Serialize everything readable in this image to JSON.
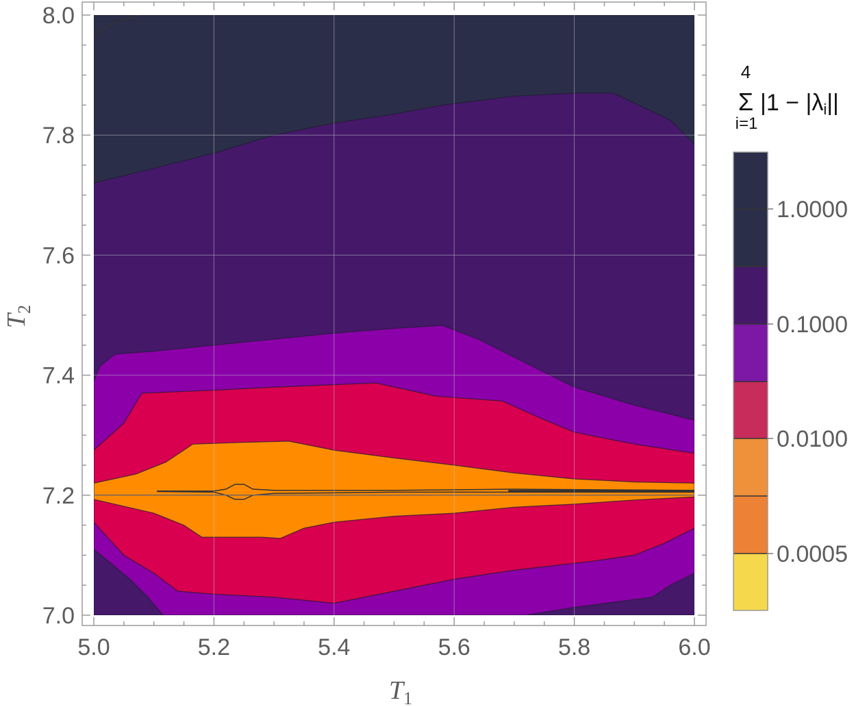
{
  "chart_data": {
    "type": "heatmap",
    "subtype": "contour",
    "title": "",
    "xlabel": "T",
    "xlabel_sub": "1",
    "ylabel": "T",
    "ylabel_sub": "2",
    "xlim": [
      5.0,
      6.0
    ],
    "ylim": [
      7.0,
      8.0
    ],
    "x_ticks": [
      {
        "value": 5.0,
        "label": "5.0"
      },
      {
        "value": 5.2,
        "label": "5.2"
      },
      {
        "value": 5.4,
        "label": "5.4"
      },
      {
        "value": 5.6,
        "label": "5.6"
      },
      {
        "value": 5.8,
        "label": "5.8"
      },
      {
        "value": 6.0,
        "label": "6.0"
      }
    ],
    "y_ticks": [
      {
        "value": 7.0,
        "label": "7.0"
      },
      {
        "value": 7.2,
        "label": "7.2"
      },
      {
        "value": 7.4,
        "label": "7.4"
      },
      {
        "value": 7.6,
        "label": "7.6"
      },
      {
        "value": 7.8,
        "label": "7.8"
      },
      {
        "value": 8.0,
        "label": "8.0"
      }
    ],
    "grid": true,
    "colorbar": {
      "title_main": "|1 − |λ",
      "title_sub_i": "i",
      "title_end": "||",
      "sum_symbol": "Σ",
      "sum_upper": "4",
      "sum_lower": "i=1",
      "scale": "log",
      "tick_labels": [
        "1.0000",
        "0.1000",
        "0.0100",
        "0.0005"
      ],
      "tick_values": [
        1.0,
        0.1,
        0.01,
        0.0005
      ],
      "bands": [
        {
          "color": "#2b2e48"
        },
        {
          "color": "#2b2e48"
        },
        {
          "color": "#45186a"
        },
        {
          "color": "#7c17a6"
        },
        {
          "color": "#c82c5a"
        },
        {
          "color": "#ee913a"
        },
        {
          "color": "#ed8236"
        },
        {
          "color": "#f6d84c"
        }
      ]
    },
    "regions": [
      {
        "level": "top",
        "color": "#2b2e48",
        "points": [
          [
            5.0,
            8.0
          ],
          [
            6.0,
            8.0
          ],
          [
            6.0,
            7.2
          ],
          [
            5.0,
            7.2
          ]
        ]
      },
      {
        "level": "band-1",
        "color": "#45186a",
        "points": [
          [
            5.0,
            7.72
          ],
          [
            5.1,
            7.745
          ],
          [
            5.2,
            7.77
          ],
          [
            5.3,
            7.8
          ],
          [
            5.4,
            7.82
          ],
          [
            5.5,
            7.835
          ],
          [
            5.58,
            7.85
          ],
          [
            5.7,
            7.865
          ],
          [
            5.8,
            7.87
          ],
          [
            5.865,
            7.87
          ],
          [
            5.96,
            7.825
          ],
          [
            6.0,
            7.785
          ],
          [
            6.0,
            7.2
          ],
          [
            5.0,
            7.2
          ]
        ]
      },
      {
        "level": "band-2",
        "color": "#8b00a8",
        "points": [
          [
            5.0,
            7.39
          ],
          [
            5.01,
            7.415
          ],
          [
            5.035,
            7.435
          ],
          [
            5.1,
            7.44
          ],
          [
            5.2,
            7.45
          ],
          [
            5.3,
            7.46
          ],
          [
            5.4,
            7.47
          ],
          [
            5.5,
            7.478
          ],
          [
            5.58,
            7.483
          ],
          [
            5.64,
            7.46
          ],
          [
            5.72,
            7.42
          ],
          [
            5.8,
            7.38
          ],
          [
            5.9,
            7.35
          ],
          [
            6.0,
            7.325
          ],
          [
            6.0,
            7.2
          ],
          [
            5.0,
            7.2
          ]
        ]
      },
      {
        "level": "band-3",
        "color": "#d8004f",
        "points": [
          [
            5.0,
            7.275
          ],
          [
            5.05,
            7.32
          ],
          [
            5.08,
            7.37
          ],
          [
            5.2,
            7.375
          ],
          [
            5.3,
            7.38
          ],
          [
            5.47,
            7.387
          ],
          [
            5.57,
            7.365
          ],
          [
            5.68,
            7.357
          ],
          [
            5.74,
            7.33
          ],
          [
            5.8,
            7.305
          ],
          [
            5.9,
            7.285
          ],
          [
            6.0,
            7.27
          ],
          [
            6.0,
            7.2
          ],
          [
            5.0,
            7.2
          ]
        ]
      },
      {
        "level": "band-4",
        "color": "#ff8c00",
        "points": [
          [
            5.0,
            7.22
          ],
          [
            5.07,
            7.235
          ],
          [
            5.12,
            7.255
          ],
          [
            5.165,
            7.285
          ],
          [
            5.25,
            7.288
          ],
          [
            5.325,
            7.29
          ],
          [
            5.4,
            7.275
          ],
          [
            5.5,
            7.262
          ],
          [
            5.6,
            7.25
          ],
          [
            5.7,
            7.237
          ],
          [
            5.8,
            7.227
          ],
          [
            5.9,
            7.222
          ],
          [
            6.0,
            7.22
          ],
          [
            6.0,
            7.2
          ],
          [
            5.0,
            7.2
          ]
        ]
      },
      {
        "level": "bottom",
        "color": "#2b2e48",
        "points": [
          [
            5.0,
            7.2
          ],
          [
            6.0,
            7.2
          ],
          [
            6.0,
            7.0
          ],
          [
            5.0,
            7.0
          ]
        ]
      },
      {
        "level": "band-1",
        "color": "#45186a",
        "points": [
          [
            5.0,
            7.2
          ],
          [
            6.0,
            7.2
          ],
          [
            6.0,
            7.0
          ],
          [
            5.0,
            7.0
          ]
        ]
      },
      {
        "level": "band-2",
        "color": "#8b00a8",
        "points": [
          [
            5.0,
            7.2
          ],
          [
            6.0,
            7.2
          ],
          [
            6.0,
            7.07
          ],
          [
            5.96,
            7.05
          ],
          [
            5.93,
            7.03
          ],
          [
            5.8,
            7.013
          ],
          [
            5.72,
            7.0
          ],
          [
            5.115,
            7.0
          ],
          [
            5.09,
            7.03
          ],
          [
            5.06,
            7.06
          ],
          [
            5.03,
            7.085
          ],
          [
            5.0,
            7.11
          ]
        ]
      },
      {
        "level": "band-3",
        "color": "#d8004f",
        "points": [
          [
            5.0,
            7.2
          ],
          [
            6.0,
            7.2
          ],
          [
            6.0,
            7.145
          ],
          [
            5.95,
            7.12
          ],
          [
            5.9,
            7.1
          ],
          [
            5.83,
            7.09
          ],
          [
            5.7,
            7.075
          ],
          [
            5.6,
            7.06
          ],
          [
            5.5,
            7.04
          ],
          [
            5.4,
            7.02
          ],
          [
            5.3,
            7.03
          ],
          [
            5.2,
            7.035
          ],
          [
            5.14,
            7.04
          ],
          [
            5.1,
            7.07
          ],
          [
            5.05,
            7.1
          ],
          [
            5.0,
            7.155
          ]
        ]
      },
      {
        "level": "band-4",
        "color": "#ff8c00",
        "points": [
          [
            5.0,
            7.2
          ],
          [
            6.0,
            7.2
          ],
          [
            6.0,
            7.197
          ],
          [
            5.9,
            7.192
          ],
          [
            5.8,
            7.185
          ],
          [
            5.7,
            7.18
          ],
          [
            5.6,
            7.17
          ],
          [
            5.5,
            7.165
          ],
          [
            5.4,
            7.155
          ],
          [
            5.35,
            7.145
          ],
          [
            5.31,
            7.128
          ],
          [
            5.28,
            7.13
          ],
          [
            5.18,
            7.13
          ],
          [
            5.15,
            7.15
          ],
          [
            5.1,
            7.17
          ],
          [
            5.0,
            7.193
          ]
        ]
      }
    ],
    "contour_lines": [
      {
        "points": [
          [
            5.0,
            7.967
          ],
          [
            5.03,
            7.985
          ],
          [
            5.075,
            8.0
          ]
        ]
      },
      {
        "points": [
          [
            5.105,
            7.207
          ],
          [
            5.2,
            7.207
          ],
          [
            5.22,
            7.21
          ],
          [
            5.235,
            7.218
          ],
          [
            5.25,
            7.218
          ],
          [
            5.265,
            7.21
          ],
          [
            5.3,
            7.208
          ],
          [
            5.5,
            7.208
          ],
          [
            5.7,
            7.21
          ],
          [
            6.0,
            7.208
          ]
        ]
      },
      {
        "points": [
          [
            5.105,
            7.206
          ],
          [
            5.2,
            7.205
          ],
          [
            5.22,
            7.2
          ],
          [
            5.235,
            7.193
          ],
          [
            5.25,
            7.193
          ],
          [
            5.265,
            7.2
          ],
          [
            5.3,
            7.203
          ],
          [
            5.5,
            7.205
          ],
          [
            5.7,
            7.205
          ],
          [
            6.0,
            7.205
          ]
        ]
      },
      {
        "points": [
          [
            5.69,
            7.207
          ],
          [
            6.0,
            7.207
          ]
        ],
        "heavy": true
      }
    ]
  }
}
